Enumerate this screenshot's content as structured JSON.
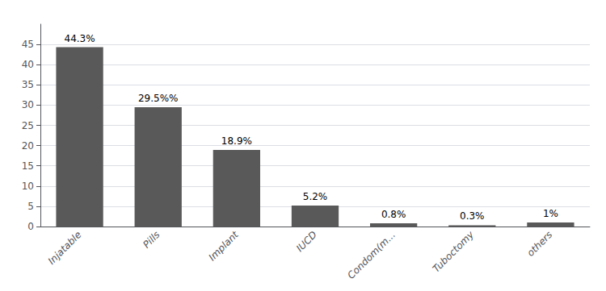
{
  "chart_data": {
    "type": "bar",
    "categories": [
      "Injatable",
      "Pills",
      "Implant",
      "IUCD",
      "Condom(m...",
      "Tuboctomy",
      "others"
    ],
    "values": [
      44.3,
      29.5,
      18.9,
      5.2,
      0.8,
      0.3,
      1.0
    ],
    "value_labels": [
      "44.3%",
      "29.5%%",
      "18.9%",
      "5.2%",
      "0.8%",
      "0.3%",
      "1%"
    ],
    "color": "#595959",
    "ylim": [
      0,
      50
    ],
    "yticks": [
      0,
      5,
      10,
      15,
      20,
      25,
      30,
      35,
      40,
      45
    ],
    "grid": true,
    "data_labels": true
  }
}
